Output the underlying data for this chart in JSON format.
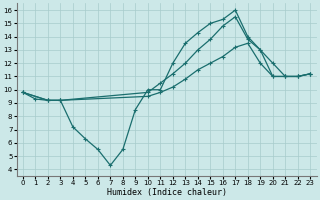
{
  "xlabel": "Humidex (Indice chaleur)",
  "bg_color": "#cce8e8",
  "grid_color": "#a8cccc",
  "line_color": "#1a6e6e",
  "xlim": [
    -0.5,
    23.5
  ],
  "ylim": [
    3.5,
    16.5
  ],
  "xticks": [
    0,
    1,
    2,
    3,
    4,
    5,
    6,
    7,
    8,
    9,
    10,
    11,
    12,
    13,
    14,
    15,
    16,
    17,
    18,
    19,
    20,
    21,
    22,
    23
  ],
  "yticks": [
    4,
    5,
    6,
    7,
    8,
    9,
    10,
    11,
    12,
    13,
    14,
    15,
    16
  ],
  "line_dip_x": [
    0,
    1,
    2,
    3,
    4,
    5,
    6,
    7,
    8,
    9,
    10,
    11,
    12,
    13,
    14,
    15,
    16,
    17,
    18,
    19,
    20,
    21,
    22,
    23
  ],
  "line_dip_y": [
    9.8,
    9.3,
    9.2,
    9.2,
    7.2,
    6.3,
    5.5,
    4.3,
    5.5,
    8.5,
    10.0,
    10.0,
    12.0,
    13.5,
    14.3,
    15.0,
    15.3,
    16.0,
    14.0,
    13.0,
    12.0,
    11.0,
    11.0,
    11.2
  ],
  "line_mid_x": [
    0,
    2,
    3,
    10,
    11,
    12,
    13,
    14,
    15,
    16,
    17,
    18,
    19,
    20,
    21,
    22,
    23
  ],
  "line_mid_y": [
    9.8,
    9.2,
    9.2,
    9.8,
    10.5,
    11.2,
    12.0,
    13.0,
    13.8,
    14.8,
    15.5,
    13.8,
    13.0,
    11.0,
    11.0,
    11.0,
    11.2
  ],
  "line_flat_x": [
    0,
    2,
    3,
    10,
    11,
    12,
    13,
    14,
    15,
    16,
    17,
    18,
    19,
    20,
    21,
    22,
    23
  ],
  "line_flat_y": [
    9.8,
    9.2,
    9.2,
    9.5,
    9.8,
    10.2,
    10.8,
    11.5,
    12.0,
    12.5,
    13.2,
    13.5,
    12.0,
    11.0,
    11.0,
    11.0,
    11.2
  ]
}
